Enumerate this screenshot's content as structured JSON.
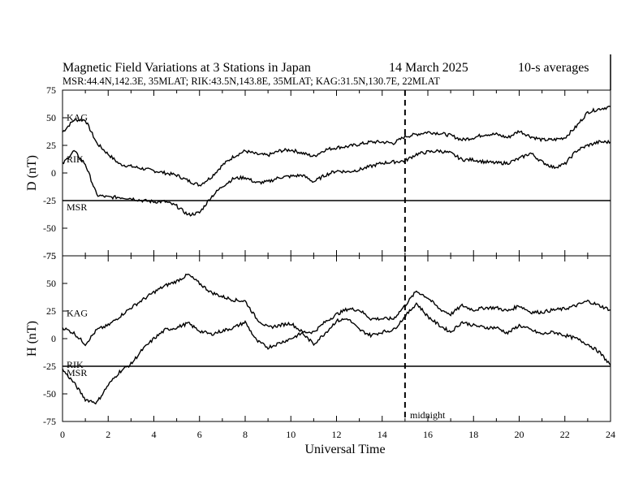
{
  "header": {
    "title": "Magnetic Field Variations at 3 Stations in Japan",
    "date": "14 March   2025",
    "averaging": "10-s averages",
    "stations_line": "MSR:44.4N,142.3E, 35MLAT;  RIK:43.5N,143.8E, 35MLAT;  KAG:31.5N,130.7E, 22MLAT"
  },
  "annotations": {
    "midnight": "midnight"
  },
  "chart_data": [
    {
      "type": "line",
      "panel": "top",
      "ylabel": "D (nT)",
      "xlabel": "",
      "ylim": [
        -75,
        75
      ],
      "yticks": [
        "75",
        "50",
        "25",
        "0",
        "-25",
        "-50",
        "-75"
      ],
      "xlim": [
        0,
        24
      ],
      "midnight_line_x": 15,
      "series": [
        {
          "name": "KAG",
          "x": [
            0,
            0.5,
            1,
            1.5,
            2,
            2.5,
            3,
            3.5,
            4,
            4.5,
            5,
            5.5,
            6,
            6.5,
            7,
            7.5,
            8,
            8.5,
            9,
            9.5,
            10,
            10.5,
            11,
            11.5,
            12,
            12.5,
            13,
            13.5,
            14,
            14.5,
            15,
            15.5,
            16,
            16.5,
            17,
            17.5,
            18,
            18.5,
            19,
            19.5,
            20,
            20.5,
            21,
            21.5,
            22,
            22.5,
            23,
            23.5,
            24
          ],
          "values": [
            37,
            48,
            48,
            27,
            17,
            8,
            6,
            4,
            2,
            0,
            -2,
            -7,
            -11,
            -4,
            7,
            15,
            20,
            17,
            16,
            20,
            21,
            18,
            15,
            21,
            23,
            24,
            26,
            28,
            28,
            27,
            33,
            35,
            37,
            36,
            34,
            30,
            32,
            35,
            35,
            32,
            38,
            33,
            30,
            30,
            32,
            42,
            55,
            58,
            60
          ]
        },
        {
          "name": "RIK",
          "x": [
            0,
            0.5,
            1,
            1.5,
            2,
            2.5,
            3,
            3.5,
            4,
            4.5,
            5,
            5.5,
            6,
            6.5,
            7,
            7.5,
            8,
            8.5,
            9,
            9.5,
            10,
            10.5,
            11,
            11.5,
            12,
            12.5,
            13,
            13.5,
            14,
            14.5,
            15,
            15.5,
            16,
            16.5,
            17,
            17.5,
            18,
            18.5,
            19,
            19.5,
            20,
            20.5,
            21,
            21.5,
            22,
            22.5,
            23,
            23.5,
            24
          ],
          "values": [
            8,
            20,
            8,
            -20,
            -22,
            -22,
            -23,
            -25,
            -26,
            -26,
            -30,
            -38,
            -36,
            -22,
            -12,
            -5,
            -4,
            -9,
            -8,
            -4,
            -3,
            -2,
            -8,
            -2,
            2,
            1,
            3,
            6,
            9,
            10,
            11,
            17,
            19,
            20,
            18,
            12,
            12,
            10,
            9,
            9,
            13,
            18,
            10,
            5,
            8,
            20,
            25,
            28,
            28
          ]
        },
        {
          "name": "MSR",
          "x": [
            0,
            24
          ],
          "values": [
            -25,
            -25
          ]
        }
      ]
    },
    {
      "type": "line",
      "panel": "bottom",
      "ylabel": "H (nT)",
      "xlabel": "Universal Time",
      "ylim": [
        -75,
        75
      ],
      "yticks": [
        "75",
        "50",
        "25",
        "0",
        "-25",
        "-50",
        "-75"
      ],
      "xlim": [
        0,
        24
      ],
      "xticks": [
        "0",
        "2",
        "4",
        "6",
        "8",
        "10",
        "12",
        "14",
        "16",
        "18",
        "20",
        "22",
        "24"
      ],
      "midnight_line_x": 15,
      "series": [
        {
          "name": "KAG",
          "x": [
            0,
            0.5,
            1,
            1.5,
            2,
            2.5,
            3,
            3.5,
            4,
            4.5,
            5,
            5.5,
            6,
            6.5,
            7,
            7.5,
            8,
            8.5,
            9,
            9.5,
            10,
            10.5,
            11,
            11.5,
            12,
            12.5,
            13,
            13.5,
            14,
            14.5,
            15,
            15.5,
            16,
            16.5,
            17,
            17.5,
            18,
            18.5,
            19,
            19.5,
            20,
            20.5,
            21,
            21.5,
            22,
            22.5,
            23,
            23.5,
            24
          ],
          "values": [
            10,
            5,
            -5,
            8,
            12,
            20,
            28,
            35,
            42,
            48,
            52,
            58,
            50,
            42,
            38,
            35,
            34,
            18,
            10,
            12,
            14,
            6,
            6,
            15,
            22,
            27,
            26,
            18,
            18,
            18,
            30,
            43,
            37,
            27,
            22,
            30,
            26,
            28,
            28,
            25,
            30,
            24,
            24,
            26,
            27,
            30,
            34,
            30,
            26
          ]
        },
        {
          "name": "RIK",
          "x": [
            0,
            0.5,
            1,
            1.5,
            2,
            2.5,
            3,
            3.5,
            4,
            4.5,
            5,
            5.5,
            6,
            6.5,
            7,
            7.5,
            8,
            8.5,
            9,
            9.5,
            10,
            10.5,
            11,
            11.5,
            12,
            12.5,
            13,
            13.5,
            14,
            14.5,
            15,
            15.5,
            16,
            16.5,
            17,
            17.5,
            18,
            18.5,
            19,
            19.5,
            20,
            20.5,
            21,
            21.5,
            22,
            22.5,
            23,
            23.5,
            24
          ],
          "values": [
            -28,
            -40,
            -55,
            -58,
            -42,
            -30,
            -23,
            -10,
            0,
            8,
            10,
            14,
            7,
            4,
            7,
            10,
            15,
            -2,
            -8,
            -4,
            0,
            5,
            -5,
            5,
            16,
            18,
            8,
            3,
            6,
            8,
            20,
            32,
            20,
            12,
            6,
            15,
            12,
            10,
            10,
            5,
            12,
            8,
            4,
            6,
            3,
            0,
            -5,
            -12,
            -24
          ]
        },
        {
          "name": "MSR",
          "x": [
            0,
            24
          ],
          "values": [
            -25,
            -25
          ]
        }
      ]
    }
  ]
}
